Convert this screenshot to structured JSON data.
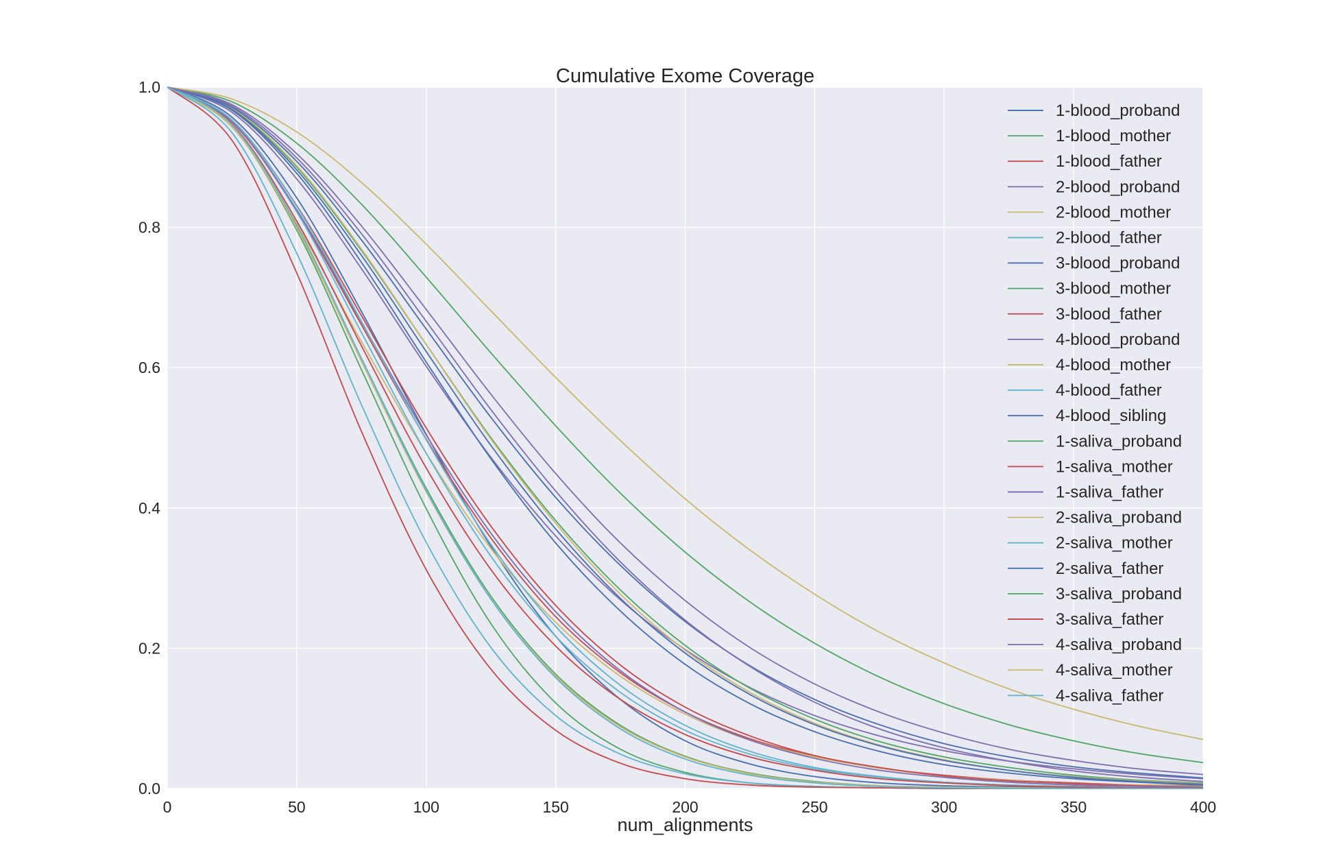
{
  "chart_data": {
    "type": "line",
    "title": "Cumulative Exome Coverage",
    "xlabel": "num_alignments",
    "ylabel": "",
    "xlim": [
      0,
      400
    ],
    "ylim": [
      0,
      1.0
    ],
    "x_ticks": [
      "0",
      "50",
      "100",
      "150",
      "200",
      "250",
      "300",
      "350",
      "400"
    ],
    "y_ticks": [
      "0.0",
      "0.2",
      "0.4",
      "0.6",
      "0.8",
      "1.0"
    ],
    "grid": true,
    "legend_position": "top-right",
    "x": [
      0,
      25,
      50,
      75,
      100,
      125,
      150,
      175,
      200,
      225,
      250,
      275,
      300,
      325,
      350,
      375,
      400
    ],
    "series": [
      {
        "name": "1-blood_proband",
        "color": "#4C72B0",
        "values": [
          1.0,
          0.957,
          0.842,
          0.68,
          0.505,
          0.345,
          0.217,
          0.127,
          0.068,
          0.035,
          0.017,
          0.008,
          0.004,
          0.002,
          0.001,
          0.0,
          0.0
        ]
      },
      {
        "name": "1-blood_mother",
        "color": "#55A868",
        "values": [
          1.0,
          0.944,
          0.796,
          0.597,
          0.399,
          0.235,
          0.122,
          0.056,
          0.023,
          0.008,
          0.003,
          0.001,
          0.0,
          0.0,
          0.0,
          0.0,
          0.0
        ]
      },
      {
        "name": "1-blood_father",
        "color": "#C44E52",
        "values": [
          1.0,
          0.95,
          0.823,
          0.661,
          0.498,
          0.357,
          0.245,
          0.165,
          0.109,
          0.071,
          0.046,
          0.029,
          0.019,
          0.012,
          0.008,
          0.005,
          0.004
        ]
      },
      {
        "name": "2-blood_proband",
        "color": "#8172B2",
        "values": [
          1.0,
          0.964,
          0.869,
          0.741,
          0.602,
          0.472,
          0.36,
          0.269,
          0.198,
          0.144,
          0.104,
          0.075,
          0.054,
          0.039,
          0.028,
          0.02,
          0.014
        ]
      },
      {
        "name": "2-blood_mother",
        "color": "#CCB974",
        "values": [
          1.0,
          0.943,
          0.805,
          0.637,
          0.478,
          0.342,
          0.237,
          0.16,
          0.106,
          0.069,
          0.045,
          0.029,
          0.018,
          0.012,
          0.007,
          0.005,
          0.003
        ]
      },
      {
        "name": "2-blood_father",
        "color": "#64B5CD",
        "values": [
          1.0,
          0.935,
          0.763,
          0.547,
          0.351,
          0.201,
          0.104,
          0.049,
          0.021,
          0.008,
          0.003,
          0.001,
          0.0,
          0.0,
          0.0,
          0.0,
          0.0
        ]
      },
      {
        "name": "3-blood_proband",
        "color": "#4C72B0",
        "values": [
          1.0,
          0.967,
          0.877,
          0.75,
          0.608,
          0.47,
          0.35,
          0.253,
          0.177,
          0.121,
          0.081,
          0.053,
          0.034,
          0.022,
          0.014,
          0.009,
          0.005
        ]
      },
      {
        "name": "3-blood_mother",
        "color": "#55A868",
        "values": [
          1.0,
          0.969,
          0.886,
          0.767,
          0.633,
          0.5,
          0.382,
          0.283,
          0.204,
          0.143,
          0.099,
          0.067,
          0.045,
          0.03,
          0.019,
          0.012,
          0.008
        ]
      },
      {
        "name": "3-blood_father",
        "color": "#C44E52",
        "values": [
          1.0,
          0.953,
          0.831,
          0.674,
          0.514,
          0.374,
          0.261,
          0.176,
          0.116,
          0.075,
          0.047,
          0.03,
          0.018,
          0.011,
          0.007,
          0.004,
          0.002
        ]
      },
      {
        "name": "4-blood_proband",
        "color": "#8172B2",
        "values": [
          1.0,
          0.975,
          0.905,
          0.802,
          0.683,
          0.562,
          0.449,
          0.35,
          0.268,
          0.201,
          0.149,
          0.109,
          0.079,
          0.056,
          0.04,
          0.028,
          0.02
        ]
      },
      {
        "name": "4-blood_mother",
        "color": "#CCB974",
        "values": [
          1.0,
          0.97,
          0.888,
          0.769,
          0.633,
          0.498,
          0.378,
          0.277,
          0.197,
          0.137,
          0.093,
          0.062,
          0.041,
          0.026,
          0.017,
          0.011,
          0.007
        ]
      },
      {
        "name": "4-blood_father",
        "color": "#64B5CD",
        "values": [
          1.0,
          0.951,
          0.822,
          0.65,
          0.478,
          0.331,
          0.217,
          0.137,
          0.083,
          0.049,
          0.028,
          0.016,
          0.009,
          0.005,
          0.002,
          0.001,
          0.001
        ]
      },
      {
        "name": "4-blood_sibling",
        "color": "#4C72B0",
        "values": [
          1.0,
          0.971,
          0.894,
          0.782,
          0.655,
          0.529,
          0.415,
          0.318,
          0.238,
          0.175,
          0.127,
          0.091,
          0.064,
          0.045,
          0.031,
          0.022,
          0.015
        ]
      },
      {
        "name": "1-saliva_proband",
        "color": "#55A868",
        "values": [
          1.0,
          0.979,
          0.92,
          0.833,
          0.729,
          0.621,
          0.517,
          0.421,
          0.337,
          0.266,
          0.207,
          0.159,
          0.121,
          0.091,
          0.068,
          0.05,
          0.037
        ]
      },
      {
        "name": "1-saliva_mother",
        "color": "#C44E52",
        "values": [
          1.0,
          0.924,
          0.735,
          0.509,
          0.312,
          0.17,
          0.083,
          0.036,
          0.014,
          0.005,
          0.002,
          0.001,
          0.0,
          0.0,
          0.0,
          0.0,
          0.0
        ]
      },
      {
        "name": "1-saliva_father",
        "color": "#8172B2",
        "values": [
          1.0,
          0.951,
          0.825,
          0.665,
          0.504,
          0.364,
          0.252,
          0.168,
          0.109,
          0.069,
          0.043,
          0.026,
          0.016,
          0.009,
          0.005,
          0.003,
          0.002
        ]
      },
      {
        "name": "2-saliva_proband",
        "color": "#CCB974",
        "values": [
          1.0,
          0.983,
          0.936,
          0.864,
          0.776,
          0.681,
          0.586,
          0.496,
          0.413,
          0.34,
          0.277,
          0.223,
          0.179,
          0.142,
          0.113,
          0.089,
          0.07
        ]
      },
      {
        "name": "2-saliva_mother",
        "color": "#64B5CD",
        "values": [
          1.0,
          0.953,
          0.83,
          0.666,
          0.497,
          0.348,
          0.231,
          0.147,
          0.09,
          0.053,
          0.03,
          0.017,
          0.009,
          0.005,
          0.003,
          0.001,
          0.001
        ]
      },
      {
        "name": "2-saliva_father",
        "color": "#4C72B0",
        "values": [
          1.0,
          0.968,
          0.882,
          0.76,
          0.623,
          0.489,
          0.37,
          0.271,
          0.193,
          0.134,
          0.091,
          0.061,
          0.04,
          0.026,
          0.016,
          0.01,
          0.006
        ]
      },
      {
        "name": "3-saliva_proband",
        "color": "#55A868",
        "values": [
          1.0,
          0.945,
          0.801,
          0.613,
          0.428,
          0.274,
          0.163,
          0.09,
          0.046,
          0.022,
          0.01,
          0.004,
          0.002,
          0.001,
          0.0,
          0.0,
          0.0
        ]
      },
      {
        "name": "3-saliva_father",
        "color": "#C44E52",
        "values": [
          1.0,
          0.947,
          0.809,
          0.631,
          0.457,
          0.312,
          0.203,
          0.127,
          0.077,
          0.045,
          0.026,
          0.014,
          0.008,
          0.004,
          0.002,
          0.001,
          0.001
        ]
      },
      {
        "name": "4-saliva_proband",
        "color": "#8172B2",
        "values": [
          1.0,
          0.973,
          0.899,
          0.791,
          0.666,
          0.54,
          0.424,
          0.323,
          0.24,
          0.174,
          0.123,
          0.085,
          0.058,
          0.039,
          0.025,
          0.016,
          0.01
        ]
      },
      {
        "name": "4-saliva_mother",
        "color": "#CCB974",
        "values": [
          1.0,
          0.944,
          0.799,
          0.609,
          0.423,
          0.27,
          0.16,
          0.088,
          0.045,
          0.021,
          0.009,
          0.004,
          0.002,
          0.001,
          0.0,
          0.0,
          0.0
        ]
      },
      {
        "name": "4-saliva_father",
        "color": "#64B5CD",
        "values": [
          1.0,
          0.946,
          0.803,
          0.613,
          0.425,
          0.27,
          0.158,
          0.085,
          0.042,
          0.019,
          0.008,
          0.003,
          0.001,
          0.0,
          0.0,
          0.0,
          0.0
        ]
      }
    ]
  }
}
